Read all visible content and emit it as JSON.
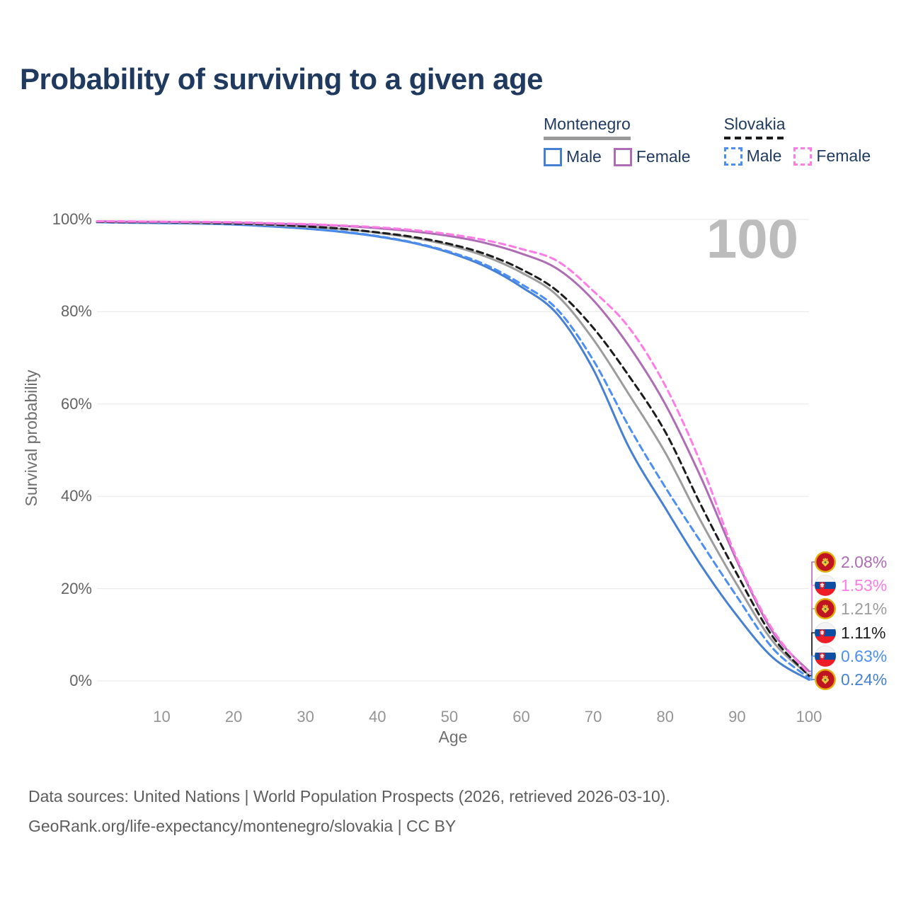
{
  "title": "Probability of surviving to a given age",
  "watermark": {
    "text": "100"
  },
  "legend": {
    "groups": [
      {
        "label": "Montenegro",
        "line_style": "solid",
        "line_color": "#9a9a9a",
        "items": [
          {
            "label": "Male",
            "swatch_color": "#4680d2",
            "swatch_style": "solid"
          },
          {
            "label": "Female",
            "swatch_color": "#ad6cb4",
            "swatch_style": "solid"
          }
        ]
      },
      {
        "label": "Slovakia",
        "line_style": "dashed",
        "line_color": "#1c1c1c",
        "items": [
          {
            "label": "Male",
            "swatch_color": "#4b8ef5",
            "swatch_style": "dashed"
          },
          {
            "label": "Female",
            "swatch_color": "#ff7ce6",
            "swatch_style": "dashed"
          }
        ]
      }
    ]
  },
  "chart_data": {
    "type": "line",
    "title": "Probability of surviving to a given age",
    "xlabel": "Age",
    "ylabel": "Survival probability",
    "xlim": [
      1,
      100
    ],
    "ylim": [
      0,
      100
    ],
    "grid": "horizontal",
    "x_ticks": [
      10,
      20,
      30,
      40,
      50,
      60,
      70,
      80,
      90,
      100
    ],
    "y_ticks": [
      0,
      20,
      40,
      60,
      80,
      100
    ],
    "y_tick_suffix": "%",
    "x": [
      1,
      5,
      10,
      15,
      20,
      25,
      30,
      35,
      40,
      45,
      50,
      55,
      60,
      65,
      70,
      75,
      80,
      85,
      90,
      95,
      100
    ],
    "series": [
      {
        "id": "montenegro-male",
        "country": "Montenegro",
        "group": "Male",
        "color": "#4680d2",
        "dash": false,
        "flag": "montenegro",
        "end_label": "0.24%",
        "values": [
          99.4,
          99.3,
          99.2,
          99.1,
          98.9,
          98.5,
          98.0,
          97.3,
          96.3,
          94.9,
          92.8,
          89.8,
          85.4,
          79.5,
          67.5,
          50.5,
          37.5,
          25.0,
          14.1,
          5.0,
          0.24
        ]
      },
      {
        "id": "slovakia-male",
        "country": "Slovakia",
        "group": "Male",
        "color": "#4b8ef5",
        "dash": true,
        "flag": "slovakia",
        "end_label": "0.63%",
        "values": [
          99.4,
          99.3,
          99.3,
          99.1,
          98.9,
          98.6,
          98.1,
          97.4,
          96.4,
          95.0,
          93.0,
          90.2,
          86.0,
          80.5,
          69.5,
          55.0,
          42.0,
          30.0,
          18.2,
          7.0,
          0.63
        ]
      },
      {
        "id": "montenegro-all",
        "country": "Montenegro",
        "group": "All",
        "color": "#9c9c9c",
        "dash": false,
        "flag": "montenegro",
        "end_label": "1.21%",
        "values": [
          99.5,
          99.4,
          99.4,
          99.2,
          99.1,
          98.8,
          98.4,
          97.9,
          97.1,
          96.0,
          94.4,
          92.0,
          88.5,
          83.5,
          74.0,
          62.0,
          49.5,
          34.5,
          20.8,
          8.5,
          1.21
        ]
      },
      {
        "id": "slovakia-all",
        "country": "Slovakia",
        "group": "All",
        "color": "#1c1c1c",
        "dash": true,
        "flag": "slovakia",
        "end_label": "1.11%",
        "values": [
          99.5,
          99.4,
          99.4,
          99.3,
          99.1,
          98.9,
          98.5,
          98.0,
          97.2,
          96.2,
          94.7,
          92.5,
          89.2,
          84.5,
          76.5,
          66.0,
          54.0,
          38.0,
          23.1,
          9.5,
          1.11
        ]
      },
      {
        "id": "montenegro-female",
        "country": "Montenegro",
        "group": "Female",
        "color": "#ad6cb4",
        "dash": false,
        "flag": "montenegro",
        "end_label": "2.08%",
        "values": [
          99.6,
          99.5,
          99.5,
          99.4,
          99.3,
          99.1,
          98.9,
          98.6,
          98.1,
          97.4,
          96.4,
          94.9,
          92.6,
          89.3,
          82.5,
          72.5,
          60.0,
          44.0,
          25.9,
          10.5,
          2.08
        ]
      },
      {
        "id": "slovakia-female",
        "country": "Slovakia",
        "group": "Female",
        "color": "#ff7ce6",
        "dash": true,
        "flag": "slovakia",
        "end_label": "1.53%",
        "values": [
          99.6,
          99.6,
          99.5,
          99.5,
          99.4,
          99.2,
          99.0,
          98.7,
          98.3,
          97.7,
          96.8,
          95.5,
          93.6,
          91.0,
          84.5,
          76.5,
          64.0,
          47.0,
          26.4,
          11.0,
          1.53
        ]
      }
    ]
  },
  "footer": {
    "line1": "Data sources: United Nations | World Population Prospects (2026, retrieved 2026-03-10).",
    "line2": "GeoRank.org/life-expectancy/montenegro/slovakia | CC BY"
  }
}
